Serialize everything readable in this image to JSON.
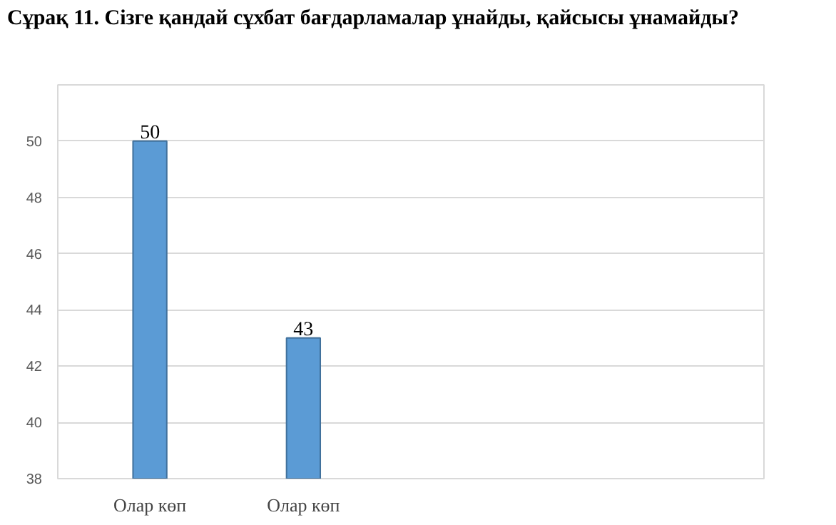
{
  "chart_data": {
    "type": "bar",
    "title": "Сұрақ 11. Сізге қандай сұхбат бағдарламалар ұнайды, қайсысы ұнамайды?",
    "categories": [
      "Олар көп",
      "Олар көп"
    ],
    "values": [
      50,
      43
    ],
    "color": "#5b9bd5",
    "ylim": [
      38,
      52
    ],
    "yticks": [
      38,
      40,
      42,
      44,
      46,
      48,
      50
    ],
    "grid": "y",
    "data_labels": true
  }
}
